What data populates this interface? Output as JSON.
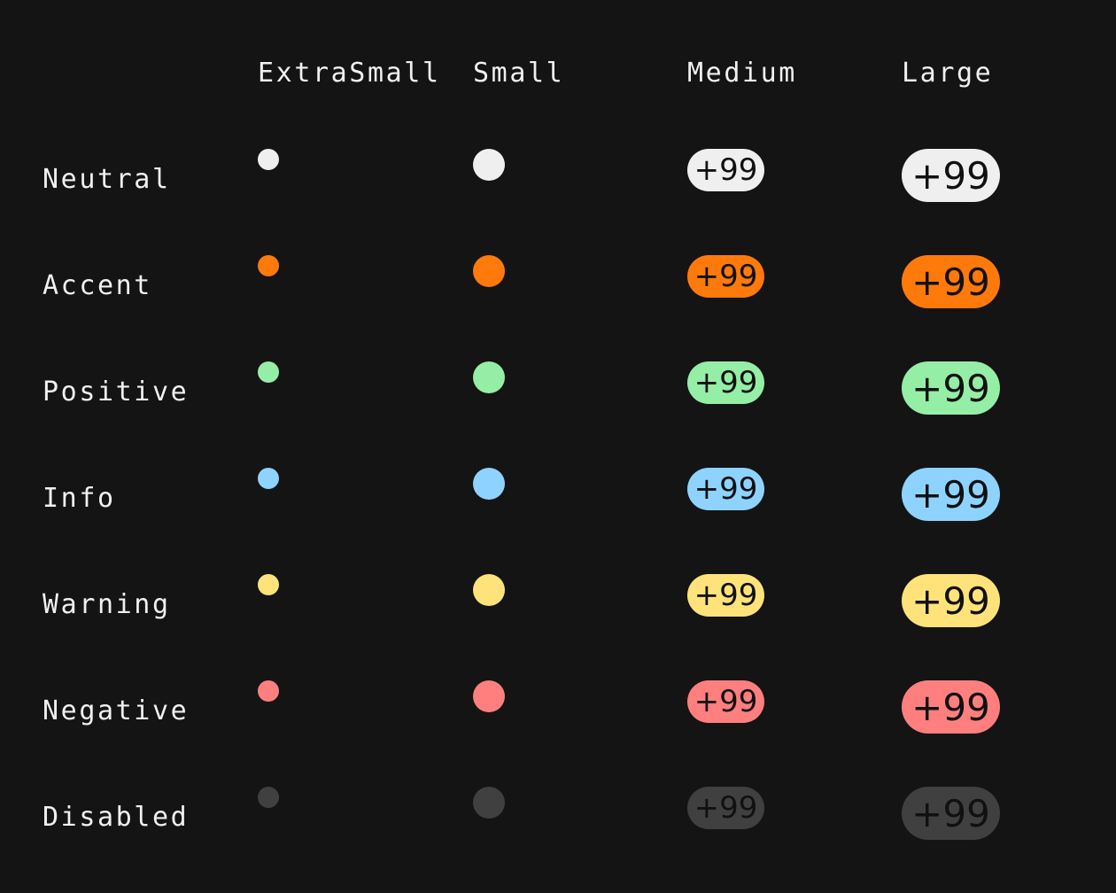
{
  "columns": [
    "ExtraSmall",
    "Small",
    "Medium",
    "Large"
  ],
  "rows": [
    {
      "label": "Neutral",
      "color": "#efefef",
      "badge": "+99"
    },
    {
      "label": "Accent",
      "color": "#ff7a0a",
      "badge": "+99"
    },
    {
      "label": "Positive",
      "color": "#95eea5",
      "badge": "+99"
    },
    {
      "label": "Info",
      "color": "#8ed3ff",
      "badge": "+99"
    },
    {
      "label": "Warning",
      "color": "#ffe37a",
      "badge": "+99"
    },
    {
      "label": "Negative",
      "color": "#ff7f7f",
      "badge": "+99"
    },
    {
      "label": "Disabled",
      "color": "#404040",
      "badge": "+99"
    }
  ]
}
